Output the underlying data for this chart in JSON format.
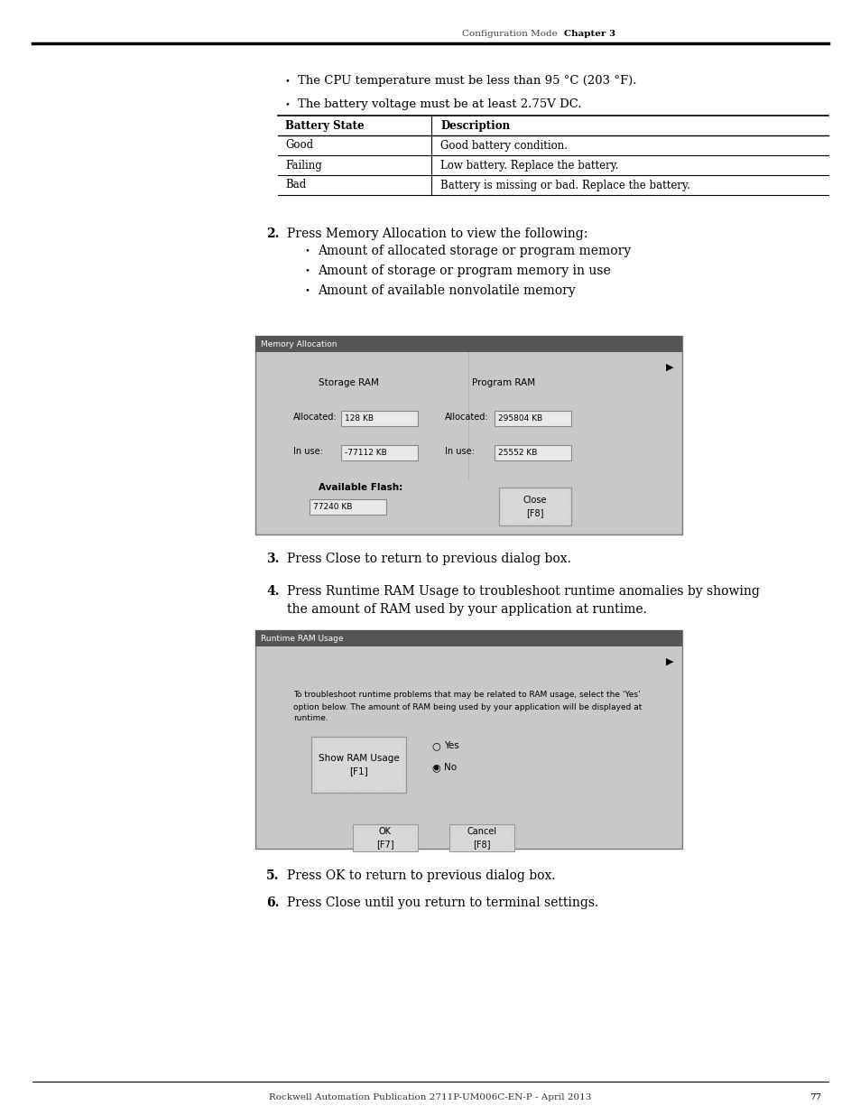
{
  "page_header_left": "Configuration Mode",
  "page_header_right": "Chapter 3",
  "bullet_points_top": [
    "The CPU temperature must be less than 95 °C (203 °F).",
    "The battery voltage must be at least 2.75V DC."
  ],
  "table_headers": [
    "Battery State",
    "Description"
  ],
  "table_rows": [
    [
      "Good",
      "Good battery condition."
    ],
    [
      "Failing",
      "Low battery. Replace the battery."
    ],
    [
      "Bad",
      "Battery is missing or bad. Replace the battery."
    ]
  ],
  "step2_text": "Press Memory Allocation to view the following:",
  "step2_bullets": [
    "Amount of allocated storage or program memory",
    "Amount of storage or program memory in use",
    "Amount of available nonvolatile memory"
  ],
  "mem_alloc_title": "Memory Allocation",
  "mem_alloc_storage_label": "Storage RAM",
  "mem_alloc_program_label": "Program RAM",
  "mem_alloc_allocated_label": "Allocated:",
  "mem_alloc_inuse_label": "In use:",
  "mem_alloc_allocated1": "128 KB",
  "mem_alloc_allocated2": "295804 KB",
  "mem_alloc_inuse1": "-77112 KB",
  "mem_alloc_inuse2": "25552 KB",
  "mem_alloc_flash_label": "Available Flash:",
  "mem_alloc_flash_value": "77240 KB",
  "mem_alloc_close_btn": "Close\n[F8]",
  "step3_text": "Press Close to return to previous dialog box.",
  "step4_line1": "Press Runtime RAM Usage to troubleshoot runtime anomalies by showing",
  "step4_line2": "the amount of RAM used by your application at runtime.",
  "runtime_title": "Runtime RAM Usage",
  "runtime_desc_line1": "To troubleshoot runtime problems that may be related to RAM usage, select the ‘Yes’",
  "runtime_desc_line2": "option below. The amount of RAM being used by your application will be displayed at",
  "runtime_desc_line3": "runtime.",
  "runtime_btn_line1": "Show RAM Usage",
  "runtime_btn_line2": "[F1]",
  "runtime_yes": "Yes",
  "runtime_no": "No",
  "runtime_ok_btn_line1": "OK",
  "runtime_ok_btn_line2": "[F7]",
  "runtime_cancel_btn_line1": "Cancel",
  "runtime_cancel_btn_line2": "[F8]",
  "step5_text": "Press OK to return to previous dialog box.",
  "step6_text": "Press Close until you return to terminal settings.",
  "footer_text": "Rockwell Automation Publication 2711P-UM006C-EN-P - April 2013",
  "page_num": "77",
  "bg_color": "#ffffff",
  "dialog_bg": "#c8c8c8",
  "dialog_header_bg": "#555555",
  "input_bg": "#e8e8e8",
  "button_bg": "#d8d8d8"
}
